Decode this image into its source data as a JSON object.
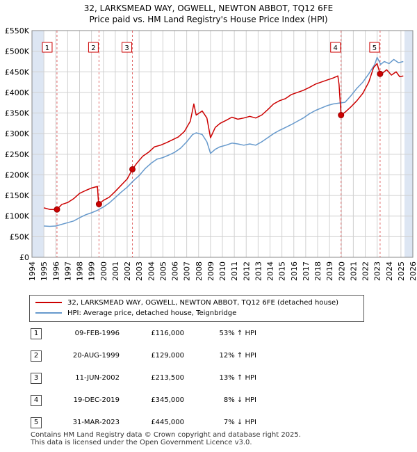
{
  "title_line1": "32, LARKSMEAD WAY, OGWELL, NEWTON ABBOT, TQ12 6FE",
  "title_line2": "Price paid vs. HM Land Registry's House Price Index (HPI)",
  "colors": {
    "property": "#cc0000",
    "hpi": "#6699cc",
    "shade": "#dde6f3",
    "grid": "#d0d0d0",
    "marker_line": "#e06666"
  },
  "chart_data": {
    "type": "line",
    "ylim": [
      0,
      550000
    ],
    "xlim": [
      1994,
      2026
    ],
    "y_ticks": [
      0,
      50000,
      100000,
      150000,
      200000,
      250000,
      300000,
      350000,
      400000,
      450000,
      500000,
      550000
    ],
    "y_tick_labels": [
      "£0",
      "£50K",
      "£100K",
      "£150K",
      "£200K",
      "£250K",
      "£300K",
      "£350K",
      "£400K",
      "£450K",
      "£500K",
      "£550K"
    ],
    "x_ticks": [
      1994,
      1995,
      1996,
      1997,
      1998,
      1999,
      2000,
      2001,
      2002,
      2003,
      2004,
      2005,
      2006,
      2007,
      2008,
      2009,
      2010,
      2011,
      2012,
      2013,
      2014,
      2015,
      2016,
      2017,
      2018,
      2019,
      2020,
      2021,
      2022,
      2023,
      2024,
      2025,
      2026
    ],
    "x_tick_labels": [
      "1994",
      "1995",
      "1996",
      "1997",
      "1998",
      "1999",
      "2000",
      "2001",
      "2002",
      "2003",
      "2004",
      "2005",
      "2006",
      "2007",
      "2008",
      "2009",
      "2010",
      "2011",
      "2012",
      "2013",
      "2014",
      "2015",
      "2016",
      "2017",
      "2018",
      "2019",
      "2020",
      "2021",
      "2022",
      "2023",
      "2024",
      "2025",
      "2026"
    ],
    "data_range": [
      1995.0,
      2025.3
    ],
    "shaded_periods": [
      [
        1994.0,
        1995.0
      ],
      [
        2025.3,
        2026.0
      ]
    ],
    "series": [
      {
        "name": "32, LARKSMEAD WAY, OGWELL, NEWTON ABBOT, TQ12 6FE (detached house)",
        "x": [
          1995.0,
          1995.5,
          1996.1,
          1996.5,
          1997.0,
          1997.5,
          1998.0,
          1998.5,
          1999.0,
          1999.5,
          1999.6,
          2000.0,
          2000.5,
          2001.0,
          2001.5,
          2002.0,
          2002.44,
          2002.8,
          2003.3,
          2003.8,
          2004.3,
          2004.8,
          2005.3,
          2005.8,
          2006.3,
          2006.8,
          2007.3,
          2007.6,
          2007.8,
          2008.3,
          2008.7,
          2009.0,
          2009.4,
          2009.8,
          2010.3,
          2010.8,
          2011.3,
          2011.8,
          2012.3,
          2012.8,
          2013.3,
          2013.8,
          2014.3,
          2014.8,
          2015.3,
          2015.8,
          2016.3,
          2016.8,
          2017.3,
          2017.8,
          2018.3,
          2018.8,
          2019.3,
          2019.7,
          2019.8,
          2019.97,
          2020.3,
          2020.8,
          2021.3,
          2021.8,
          2022.3,
          2022.7,
          2023.0,
          2023.25,
          2023.5,
          2023.8,
          2024.2,
          2024.6,
          2024.9,
          2025.2
        ],
        "values": [
          120000,
          116000,
          116000,
          128000,
          133000,
          142000,
          155000,
          162000,
          168000,
          172000,
          129000,
          138000,
          146000,
          160000,
          175000,
          190000,
          213500,
          228000,
          245000,
          255000,
          268000,
          272000,
          278000,
          285000,
          292000,
          305000,
          330000,
          372000,
          345000,
          355000,
          338000,
          290000,
          315000,
          325000,
          332000,
          340000,
          335000,
          338000,
          342000,
          338000,
          345000,
          358000,
          372000,
          380000,
          385000,
          395000,
          400000,
          405000,
          412000,
          420000,
          425000,
          430000,
          435000,
          440000,
          420000,
          345000,
          352000,
          365000,
          380000,
          398000,
          425000,
          460000,
          470000,
          445000,
          448000,
          455000,
          442000,
          450000,
          438000,
          440000
        ]
      },
      {
        "name": "HPI: Average price, detached house, Teignbridge",
        "x": [
          1995.0,
          1995.5,
          1996.0,
          1996.5,
          1997.0,
          1997.5,
          1998.0,
          1998.5,
          1999.0,
          1999.5,
          2000.0,
          2000.5,
          2001.0,
          2001.5,
          2002.0,
          2002.5,
          2003.0,
          2003.5,
          2004.0,
          2004.5,
          2005.0,
          2005.5,
          2006.0,
          2006.5,
          2007.0,
          2007.5,
          2007.8,
          2008.3,
          2008.7,
          2009.0,
          2009.4,
          2009.8,
          2010.3,
          2010.8,
          2011.3,
          2011.8,
          2012.3,
          2012.8,
          2013.3,
          2013.8,
          2014.3,
          2014.8,
          2015.3,
          2015.8,
          2016.3,
          2016.8,
          2017.3,
          2017.8,
          2018.3,
          2018.8,
          2019.3,
          2019.8,
          2020.3,
          2020.8,
          2021.3,
          2021.8,
          2022.3,
          2022.8,
          2023.0,
          2023.3,
          2023.6,
          2024.0,
          2024.4,
          2024.8,
          2025.2
        ],
        "values": [
          76000,
          75000,
          76000,
          80000,
          84000,
          88000,
          96000,
          103000,
          108000,
          114000,
          122000,
          132000,
          145000,
          158000,
          170000,
          185000,
          198000,
          215000,
          228000,
          238000,
          242000,
          248000,
          255000,
          265000,
          280000,
          298000,
          302000,
          298000,
          280000,
          252000,
          262000,
          268000,
          272000,
          277000,
          275000,
          272000,
          275000,
          272000,
          280000,
          290000,
          300000,
          308000,
          315000,
          322000,
          330000,
          338000,
          348000,
          356000,
          362000,
          368000,
          372000,
          374000,
          376000,
          392000,
          410000,
          425000,
          445000,
          468000,
          485000,
          468000,
          475000,
          470000,
          480000,
          472000,
          475000
        ]
      }
    ],
    "sales": [
      {
        "label": "1",
        "x": 1996.1,
        "value": 116000
      },
      {
        "label": "2",
        "x": 1999.63,
        "value": 129000
      },
      {
        "label": "3",
        "x": 2002.44,
        "value": 213500
      },
      {
        "label": "4",
        "x": 2019.97,
        "value": 345000
      },
      {
        "label": "5",
        "x": 2023.25,
        "value": 445000
      }
    ]
  },
  "legend": {
    "property_label": "32, LARKSMEAD WAY, OGWELL, NEWTON ABBOT, TQ12 6FE (detached house)",
    "hpi_label": "HPI: Average price, detached house, Teignbridge"
  },
  "sales_table": [
    {
      "num": "1",
      "date": "09-FEB-1996",
      "price": "£116,000",
      "hpi": "53% ↑ HPI"
    },
    {
      "num": "2",
      "date": "20-AUG-1999",
      "price": "£129,000",
      "hpi": "12% ↑ HPI"
    },
    {
      "num": "3",
      "date": "11-JUN-2002",
      "price": "£213,500",
      "hpi": "13% ↑ HPI"
    },
    {
      "num": "4",
      "date": "19-DEC-2019",
      "price": "£345,000",
      "hpi": "8% ↓ HPI"
    },
    {
      "num": "5",
      "date": "31-MAR-2023",
      "price": "£445,000",
      "hpi": "7% ↓ HPI"
    }
  ],
  "footer_line1": "Contains HM Land Registry data © Crown copyright and database right 2025.",
  "footer_line2": "This data is licensed under the Open Government Licence v3.0."
}
